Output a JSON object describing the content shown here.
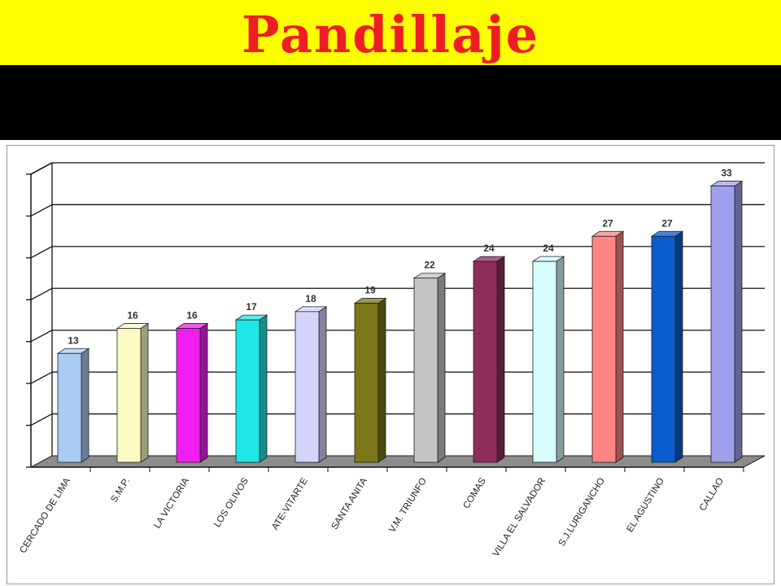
{
  "slide": {
    "title": "Pandillaje"
  },
  "chart_data": {
    "type": "bar",
    "title": "",
    "xlabel": "",
    "ylabel": "",
    "ylim": [
      0,
      35
    ],
    "grid": true,
    "categories": [
      "CERCADO DE LIMA",
      "S.M.P.",
      "LA VICTORIA",
      "LOS OLIVOS",
      "ATE-VITARTE",
      "SANTA ANITA",
      "V.M. TRIUNFO",
      "COMAS",
      "VILLA EL SALVADOR",
      "S.J.LURIGANCHO",
      "EL AGUSTINO",
      "CALLAO"
    ],
    "values": [
      13,
      16,
      16,
      17,
      18,
      19,
      22,
      24,
      24,
      27,
      27,
      33
    ],
    "colors": [
      "#a9cbf4",
      "#fdfbc4",
      "#f01ef0",
      "#1fe6e6",
      "#d4d4fb",
      "#7b7618",
      "#c4c4c4",
      "#8e2d58",
      "#d6fbfb",
      "#ff8585",
      "#0a5ccc",
      "#a0a0ee"
    ]
  }
}
